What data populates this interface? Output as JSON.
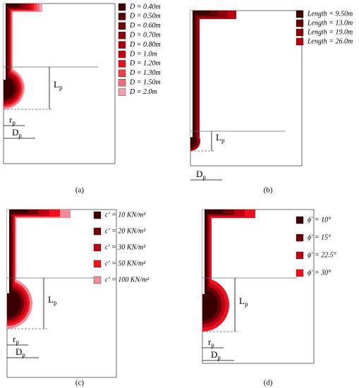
{
  "panels": [
    {
      "caption": "(a)",
      "legend": [
        {
          "label": "D  =  0.40m",
          "color": "#3a0000"
        },
        {
          "label": "D  =  0.50m",
          "color": "#560004"
        },
        {
          "label": "D  =  0.60m",
          "color": "#700008"
        },
        {
          "label": "D  =  0.70m",
          "color": "#8c000c"
        },
        {
          "label": "D  =  0.80m",
          "color": "#a80010"
        },
        {
          "label": "D  =  1.0m",
          "color": "#c80014"
        },
        {
          "label": "D  =  1.20m",
          "color": "#e8101c"
        },
        {
          "label": "D  =  1.30m",
          "color": "#f03c48"
        },
        {
          "label": "D  =  1.50m",
          "color": "#f06c78"
        },
        {
          "label": "D  =  2.0m",
          "color": "#f4a0a8"
        }
      ],
      "dims": [
        {
          "main": "L",
          "sub": "p"
        },
        {
          "main": "r",
          "sub": "p"
        },
        {
          "main": "D",
          "sub": "p"
        }
      ]
    },
    {
      "caption": "(b)",
      "legend": [
        {
          "label": "Length = 9.50m",
          "color": "#3a0000"
        },
        {
          "label": "Length = 13.0m",
          "color": "#600006"
        },
        {
          "label": "Length = 19.0m",
          "color": "#8c000c"
        },
        {
          "label": "Length = 26.0m",
          "color": "#b80012"
        }
      ],
      "dims": [
        {
          "main": "L",
          "sub": "p"
        },
        {
          "main": "D",
          "sub": "p"
        }
      ]
    },
    {
      "caption": "(c)",
      "legend": [
        {
          "label": "c′ =  10  KN/m²",
          "color": "#3a0000"
        },
        {
          "label": "c′ =  20  KN/m²",
          "color": "#700008"
        },
        {
          "label": "c′ =  30  KN/m²",
          "color": "#c00014"
        },
        {
          "label": "c′ =  50  KN/m²",
          "color": "#f01020"
        },
        {
          "label": "c′ =  100  KN/m²",
          "color": "#f08c96"
        }
      ],
      "dims": [
        {
          "main": "L",
          "sub": "p"
        },
        {
          "main": "r",
          "sub": "p"
        },
        {
          "main": "D",
          "sub": "p"
        }
      ]
    },
    {
      "caption": "(d)",
      "legend": [
        {
          "label": "ϕ′  =  10°",
          "color": "#3a0000"
        },
        {
          "label": "ϕ′  =  15°",
          "color": "#700008"
        },
        {
          "label": "ϕ′  =  22.5°",
          "color": "#c00014"
        },
        {
          "label": "ϕ′  =  30°",
          "color": "#f01020"
        }
      ],
      "dims": [
        {
          "main": "L",
          "sub": "p"
        },
        {
          "main": "r",
          "sub": "p"
        },
        {
          "main": "D",
          "sub": "p"
        }
      ]
    }
  ]
}
